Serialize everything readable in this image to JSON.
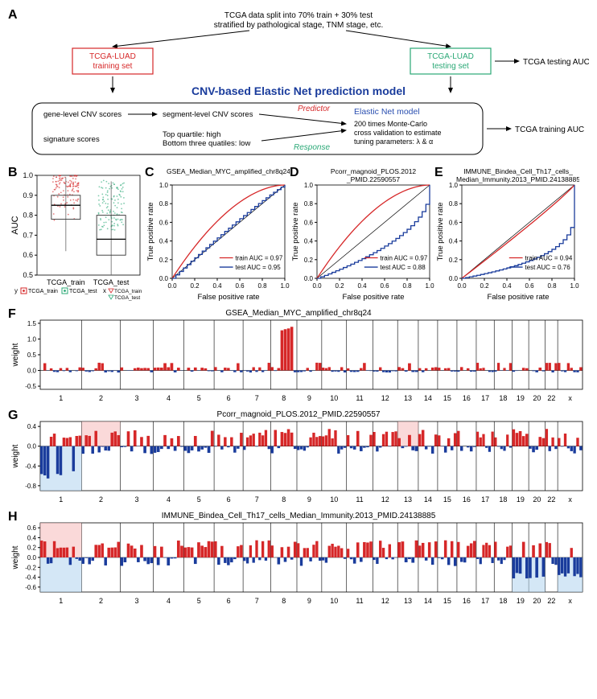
{
  "panelA": {
    "label": "A",
    "top_text": "TCGA data split into 70% train + 30% test\nstratified by pathological stage, TNM stage, etc.",
    "train_box": "TCGA-LUAD\ntraining set",
    "test_box": "TCGA-LUAD\ntesting set",
    "test_arrow_text": "TCGA testing AUC",
    "train_arrow_text": "TCGA training AUC",
    "center_title": "CNV-based Elastic Net prediction model",
    "left1": "gene-level CNV scores",
    "left2": "signature scores",
    "mid1": "segment-level CNV scores",
    "mid2": "Top quartile: high\nBottom three quatiles: low",
    "predictor": "Predictor",
    "response": "Response",
    "right_title": "Elastic Net model",
    "right_text": "200 times Monte-Carlo\ncross validation to estimate\ntuning parameters: λ & α",
    "colors": {
      "train": "#d62728",
      "test": "#2aa876",
      "predictor": "#d62728",
      "response": "#2aa876",
      "center": "#1a3c9c",
      "model": "#2a4fb0"
    }
  },
  "panelB": {
    "label": "B",
    "ylabel": "AUC",
    "ylim": [
      0.5,
      1.0
    ],
    "yticks": [
      0.5,
      0.6,
      0.7,
      0.8,
      0.9,
      1.0
    ],
    "categories": [
      "TCGA_train",
      "TCGA_test"
    ],
    "box_stats": {
      "TCGA_train": {
        "q1": 0.78,
        "med": 0.85,
        "q3": 0.9,
        "wlo": 0.62,
        "whi": 0.99,
        "color": "#d62728"
      },
      "TCGA_test": {
        "q1": 0.6,
        "med": 0.68,
        "q3": 0.8,
        "wlo": 0.5,
        "whi": 0.97,
        "color": "#2aa876"
      }
    },
    "legend_y": "y",
    "legend_x": "x",
    "legend_items_y": [
      "TCGA_train",
      "TCGA_test"
    ],
    "legend_items_x": [
      "TCGA_train",
      "TCGA_test"
    ]
  },
  "rocPanels": [
    {
      "label": "C",
      "title": "GSEA_Median_MYC_amplified_chr8q24",
      "train_auc": "0.97",
      "test_auc": "0.95"
    },
    {
      "label": "D",
      "title": "Pcorr_magnoid_PLOS.2012\n_PMID.22590557",
      "train_auc": "0.97",
      "test_auc": "0.88"
    },
    {
      "label": "E",
      "title": "IMMUNE_Bindea_Cell_Th17_cells_\nMedian_Immunity.2013_PMID.24138885",
      "train_auc": "0.94",
      "test_auc": "0.76"
    }
  ],
  "rocStyle": {
    "xlabel": "False positive rate",
    "ylabel": "True positive rate",
    "xlim": [
      0,
      1
    ],
    "ylim": [
      0,
      1
    ],
    "ticks": [
      0.0,
      0.2,
      0.4,
      0.6,
      0.8,
      1.0
    ],
    "train_color": "#d62728",
    "test_color": "#1a3c9c",
    "diag_color": "#000"
  },
  "weightPanels": [
    {
      "label": "F",
      "title": "GSEA_Median_MYC_amplified_chr8q24",
      "ylim": [
        -0.6,
        1.6
      ],
      "yticks": [
        -0.5,
        0.0,
        0.5,
        1.0,
        1.5
      ],
      "peaks": [
        {
          "chr": "8",
          "h": 1.5,
          "w": 12
        },
        {
          "chr": "8",
          "h": 1.4,
          "w": 4
        }
      ]
    },
    {
      "label": "G",
      "title": "Pcorr_magnoid_PLOS.2012_PMID.22590557",
      "ylim": [
        -0.9,
        0.5
      ],
      "yticks": [
        -0.8,
        -0.4,
        0.0,
        0.4
      ],
      "shading": [
        {
          "chr": "1",
          "side": "neg"
        },
        {
          "chr": "2",
          "side": "pos"
        },
        {
          "chr": "13",
          "side": "pos"
        }
      ]
    },
    {
      "label": "H",
      "title": "IMMUNE_Bindea_Cell_Th17_cells_Median_Immunity.2013_PMID.24138885",
      "ylim": [
        -0.7,
        0.7
      ],
      "yticks": [
        -0.6,
        -0.4,
        -0.2,
        0.0,
        0.2,
        0.4,
        0.6
      ],
      "shading": [
        {
          "chr": "1",
          "side": "pos"
        },
        {
          "chr": "1",
          "side": "neg"
        },
        {
          "chr": "19",
          "side": "neg"
        },
        {
          "chr": "20",
          "side": "neg"
        },
        {
          "chr": "x",
          "side": "neg"
        }
      ]
    }
  ],
  "weightStyle": {
    "ylabel": "weight",
    "pos_color": "#d62728",
    "neg_color": "#1a3c9c",
    "shade_pos": "#f7c0c0",
    "shade_neg": "#b7d7f0",
    "chroms": [
      "1",
      "2",
      "3",
      "4",
      "5",
      "6",
      "7",
      "8",
      "9",
      "10",
      "11",
      "12",
      "13",
      "14",
      "15",
      "16",
      "17",
      "18",
      "19",
      "20",
      "22",
      "x"
    ],
    "chrom_widths": [
      60,
      56,
      48,
      44,
      44,
      42,
      40,
      38,
      36,
      36,
      38,
      36,
      30,
      28,
      28,
      28,
      26,
      26,
      24,
      24,
      18,
      36
    ]
  }
}
